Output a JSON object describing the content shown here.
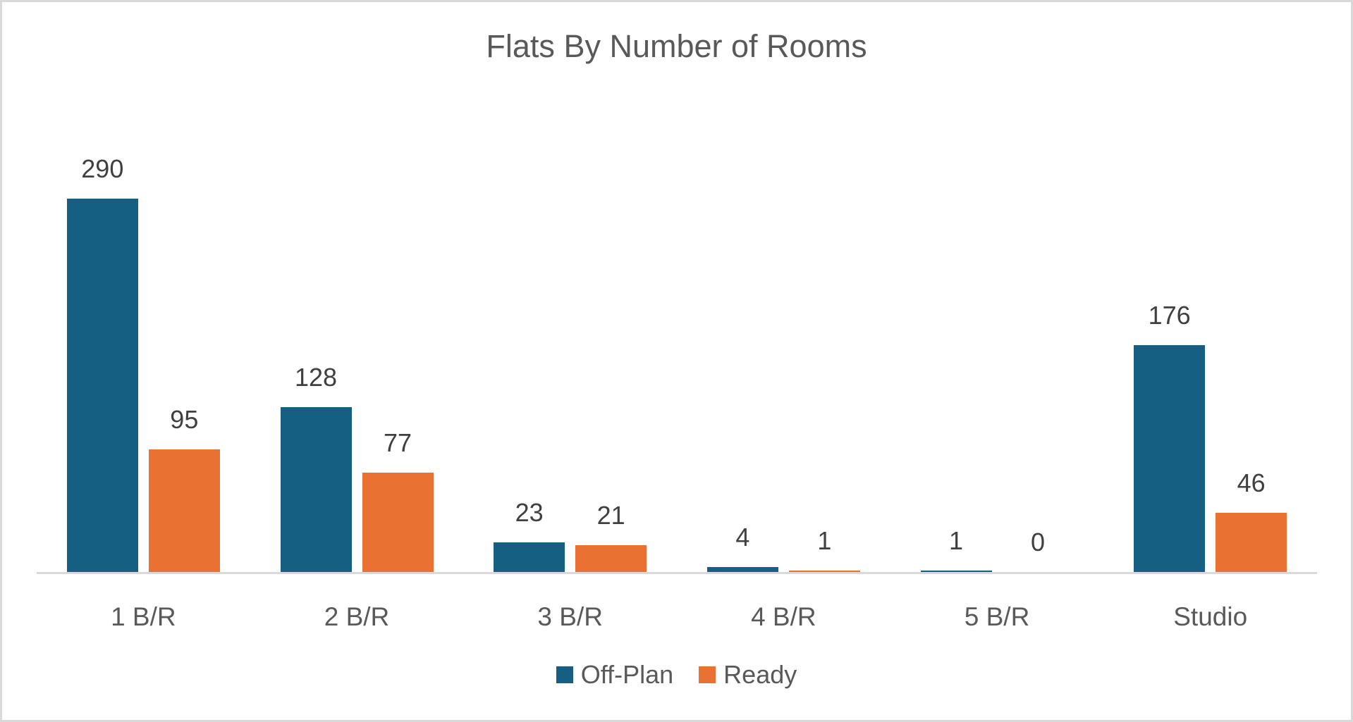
{
  "chart_data": {
    "type": "bar",
    "title": "Flats By Number of Rooms",
    "categories": [
      "1 B/R",
      "2 B/R",
      "3 B/R",
      "4 B/R",
      "5 B/R",
      "Studio"
    ],
    "series": [
      {
        "name": "Off-Plan",
        "color": "#156082",
        "values": [
          290,
          128,
          23,
          4,
          1,
          176
        ]
      },
      {
        "name": "Ready",
        "color": "#E97132",
        "values": [
          95,
          77,
          21,
          1,
          0,
          46
        ]
      }
    ],
    "ylim": [
      0,
      290
    ],
    "grid": false,
    "y_axis_visible": false,
    "value_labels": true,
    "legend_position": "bottom"
  },
  "colors": {
    "title_text": "#595959",
    "category_text": "#595959",
    "legend_text": "#595959",
    "value_label_text": "#404040",
    "axis_line": "#D9D9D9",
    "frame_border": "#D9D9D9",
    "background": "#FFFFFF"
  }
}
